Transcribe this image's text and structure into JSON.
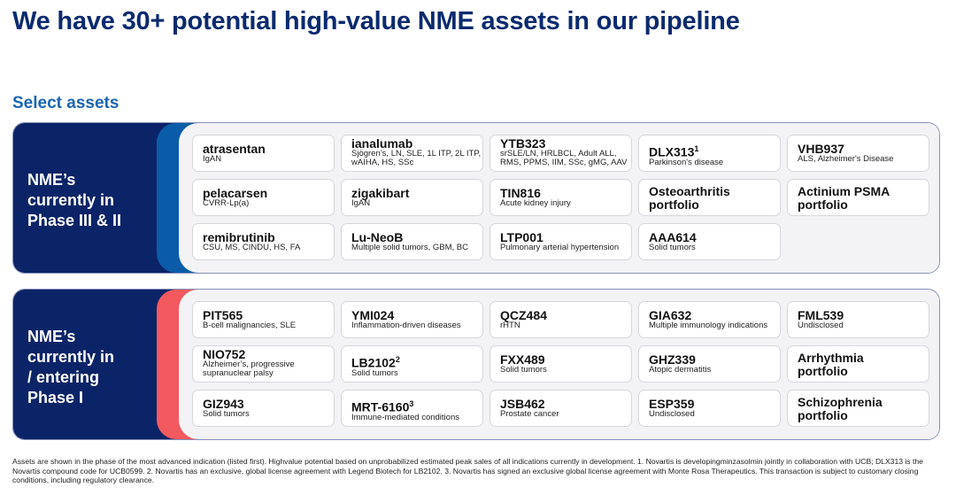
{
  "title": "We have 30+ potential high-value NME assets in our pipeline",
  "subtitle": "Select assets",
  "colors": {
    "navy": "#0b2467",
    "phase2_accent": "#0a5ca8",
    "phase1_accent": "#f25a5f",
    "title": "#0b2a6f"
  },
  "sections": [
    {
      "label": [
        "NME’s",
        "currently in",
        "Phase III & II"
      ],
      "assets": [
        {
          "name": "atrasentan",
          "ind": "IgAN"
        },
        {
          "name": "ianalumab",
          "ind": "Sjögren’s, LN, SLE, 1L ITP, 2L ITP, wAIHA, HS, SSc"
        },
        {
          "name": "YTB323",
          "ind": "srSLE/LN, HRLBCL, Adult ALL, RMS, PPMS, IIM, SSc, gMG, AAV"
        },
        {
          "name": "DLX313",
          "sup": "1",
          "ind": "Parkinson's disease"
        },
        {
          "name": "VHB937",
          "ind": "ALS, Alzheimer's Disease"
        },
        {
          "name": "pelacarsen",
          "ind": "CVRR-Lp(a)"
        },
        {
          "name": "zigakibart",
          "ind": "IgAN"
        },
        {
          "name": "TIN816",
          "ind": "Acute kidney injury"
        },
        {
          "name": "Osteoarthritis portfolio",
          "ind": ""
        },
        {
          "name": "Actinium PSMA portfolio",
          "ind": ""
        },
        {
          "name": "remibrutinib",
          "ind": "CSU, MS, CINDU, HS, FA"
        },
        {
          "name": "Lu-NeoB",
          "ind": "Multiple solid tumors, GBM, BC"
        },
        {
          "name": "LTP001",
          "ind": "Pulmonary arterial hypertension"
        },
        {
          "name": "AAA614",
          "ind": "Solid tumors"
        }
      ]
    },
    {
      "label": [
        "NME’s",
        "currently in",
        "/ entering",
        "Phase I"
      ],
      "assets": [
        {
          "name": "PIT565",
          "ind": "B-cell malignancies, SLE"
        },
        {
          "name": "YMI024",
          "ind": "Inflammation-driven diseases"
        },
        {
          "name": "QCZ484",
          "ind": "rHTN"
        },
        {
          "name": "GIA632",
          "ind": "Multiple immunology indications"
        },
        {
          "name": "FML539",
          "ind": "Undisclosed"
        },
        {
          "name": "NIO752",
          "ind": "Alzheimer’s, progressive supranuclear palsy"
        },
        {
          "name": "LB2102",
          "sup": "2",
          "ind": "Solid tumors"
        },
        {
          "name": "FXX489",
          "ind": "Solid tumors"
        },
        {
          "name": "GHZ339",
          "ind": "Atopic dermatitis"
        },
        {
          "name": "Arrhythmia portfolio",
          "ind": ""
        },
        {
          "name": "GIZ943",
          "ind": "Solid tumors"
        },
        {
          "name": "MRT-6160",
          "sup": "3",
          "ind": "Immune-mediated conditions"
        },
        {
          "name": "JSB462",
          "ind": "Prostate cancer"
        },
        {
          "name": "ESP359",
          "ind": "Undisclosed"
        },
        {
          "name": "Schizophrenia portfolio",
          "ind": ""
        }
      ]
    }
  ],
  "footnote": "Assets are shown in the phase of the most advanced indication (listed first). Highvalue potential based on unprobabilized estimated peak sales of all indications currently in development.     1. Novartis is developingminzasolmin jointly in collaboration with UCB; DLX313 is the Novartis compound code for UCB0599.     2. Novartis has an exclusive, global license agreement with Legend Biotech for LB2102.     3. Novartis has signed an exclusive global license agreement with Monte Rosa Therapeutics. This transaction is subject to customary closing conditions, including regulatory clearance."
}
